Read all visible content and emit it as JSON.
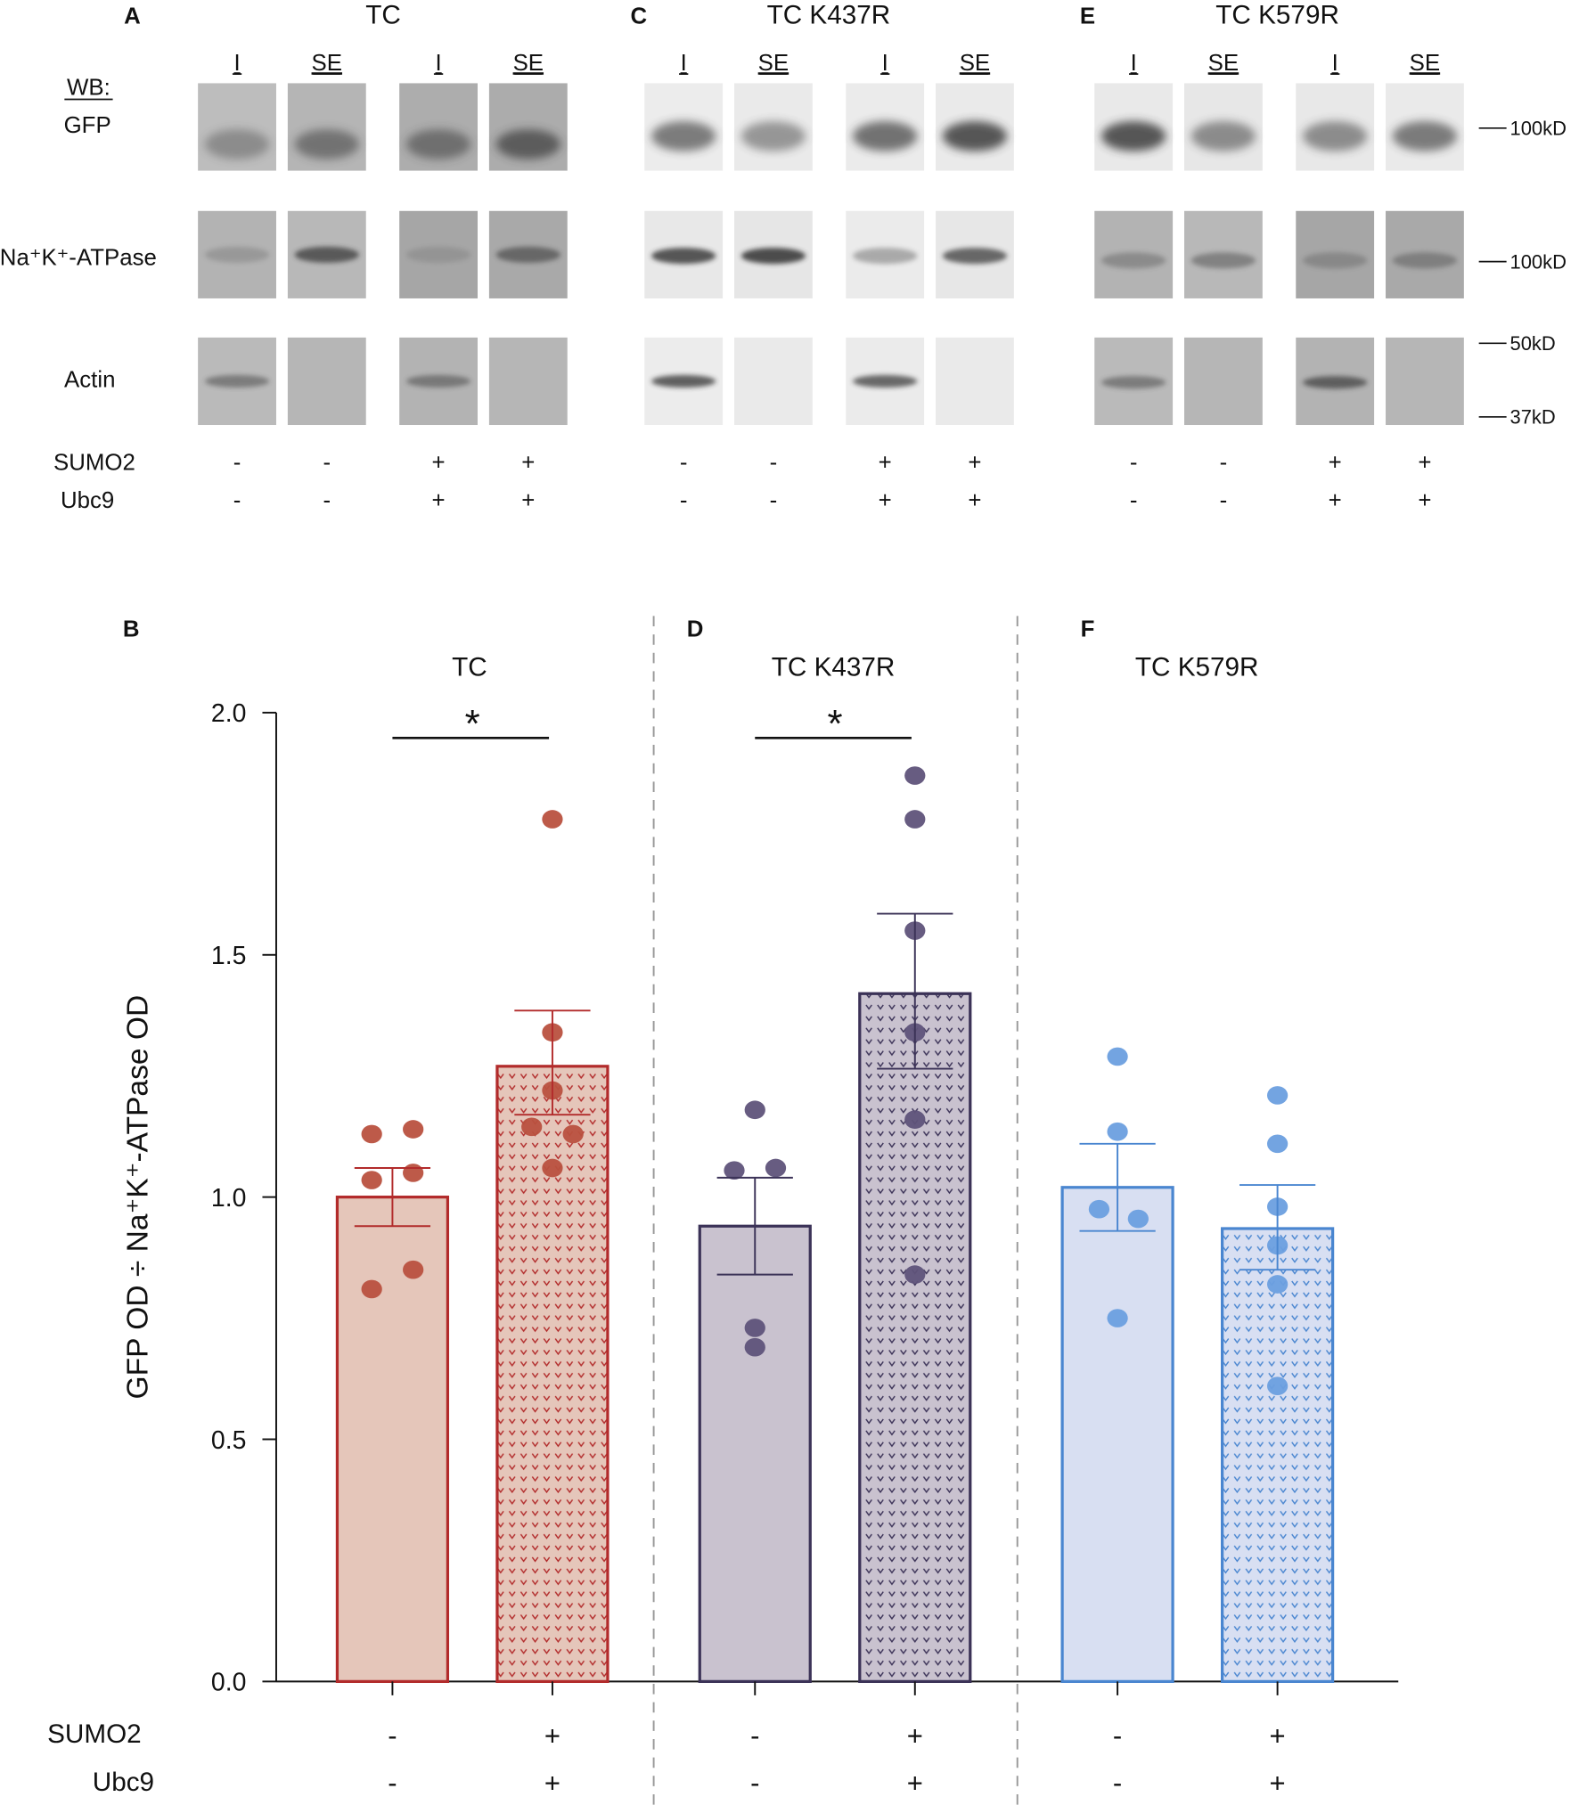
{
  "blots": {
    "wb_label": "WB:",
    "row_labels": [
      "GFP",
      "Na⁺K⁺-ATPase",
      "Actin"
    ],
    "condition_labels": [
      "SUMO2",
      "Ubc9"
    ],
    "markers": [
      "100kD",
      "100kD",
      "50kD",
      "37kD"
    ],
    "panels": [
      {
        "letter": "A",
        "title": "TC",
        "lanes": [
          "I",
          "SE",
          "I",
          "SE"
        ],
        "sumo2": [
          "-",
          "-",
          "+",
          "+"
        ],
        "ubc9": [
          "-",
          "-",
          "+",
          "+"
        ]
      },
      {
        "letter": "C",
        "title": "TC K437R",
        "lanes": [
          "I",
          "SE",
          "I",
          "SE"
        ],
        "sumo2": [
          "-",
          "-",
          "+",
          "+"
        ],
        "ubc9": [
          "-",
          "-",
          "+",
          "+"
        ]
      },
      {
        "letter": "E",
        "title": "TC K579R",
        "lanes": [
          "I",
          "SE",
          "I",
          "SE"
        ],
        "sumo2": [
          "-",
          "-",
          "+",
          "+"
        ],
        "ubc9": [
          "-",
          "-",
          "+",
          "+"
        ]
      }
    ]
  },
  "chart_data": {
    "type": "bar",
    "ylabel": "GFP OD ÷ Na⁺K⁺-ATPase OD",
    "ylim": [
      0,
      2.0
    ],
    "yticks": [
      "0.0",
      "0.5",
      "1.0",
      "1.5",
      "2.0"
    ],
    "condition_labels": [
      "SUMO2",
      "Ubc9"
    ],
    "grid": false,
    "panels": [
      {
        "letter": "B",
        "title": "TC",
        "significance": "*",
        "colors": {
          "fill": "#e5c6ba",
          "stroke": "#b22b2b",
          "dot": "#b9513f"
        },
        "bars": [
          {
            "sumo2": "-",
            "ubc9": "-",
            "mean": 1.0,
            "sem": [
              0.94,
              1.06
            ],
            "points": [
              1.13,
              1.14,
              1.035,
              1.05,
              0.81,
              0.85
            ]
          },
          {
            "sumo2": "+",
            "ubc9": "+",
            "mean": 1.27,
            "sem": [
              1.17,
              1.385
            ],
            "points": [
              1.78,
              1.34,
              1.22,
              1.145,
              1.13,
              1.06
            ]
          }
        ]
      },
      {
        "letter": "D",
        "title": "TC K437R",
        "significance": "*",
        "colors": {
          "fill": "#c9c2cf",
          "stroke": "#3b3257",
          "dot": "#5f537a"
        },
        "bars": [
          {
            "sumo2": "-",
            "ubc9": "-",
            "mean": 0.94,
            "sem": [
              0.84,
              1.04
            ],
            "points": [
              1.18,
              1.055,
              1.06,
              0.73,
              0.69
            ]
          },
          {
            "sumo2": "+",
            "ubc9": "+",
            "mean": 1.42,
            "sem": [
              1.265,
              1.585
            ],
            "points": [
              1.87,
              1.78,
              1.55,
              1.34,
              1.16,
              0.84
            ]
          }
        ]
      },
      {
        "letter": "F",
        "title": "TC K579R",
        "significance": "",
        "colors": {
          "fill": "#d8dff2",
          "stroke": "#4a86d0",
          "dot": "#6b9fdf"
        },
        "bars": [
          {
            "sumo2": "-",
            "ubc9": "-",
            "mean": 1.02,
            "sem": [
              0.93,
              1.11
            ],
            "points": [
              1.29,
              1.135,
              0.975,
              0.955,
              0.75
            ]
          },
          {
            "sumo2": "+",
            "ubc9": "+",
            "mean": 0.935,
            "sem": [
              0.85,
              1.025
            ],
            "points": [
              1.21,
              1.11,
              0.98,
              0.9,
              0.82,
              0.61
            ]
          }
        ]
      }
    ]
  }
}
